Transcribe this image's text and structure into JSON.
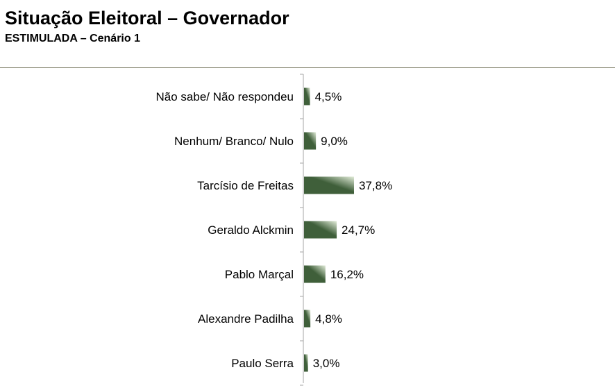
{
  "header": {
    "title": "Situação Eleitoral – Governador",
    "subtitle": "ESTIMULADA – Cenário 1"
  },
  "chart_data": {
    "type": "bar",
    "orientation": "horizontal",
    "categories": [
      "Não sabe/ Não respondeu",
      "Nenhum/ Branco/ Nulo",
      "Tarcísio de Freitas",
      "Geraldo Alckmin",
      "Pablo Marçal",
      "Alexandre Padilha",
      "Paulo Serra"
    ],
    "values": [
      4.5,
      9.0,
      37.8,
      24.7,
      16.2,
      4.8,
      3.0
    ],
    "value_labels": [
      "4,5%",
      "9,0%",
      "37,8%",
      "24,7%",
      "16,2%",
      "4,8%",
      "3,0%"
    ],
    "xlim": [
      0,
      100
    ],
    "grid": false,
    "legend": "none",
    "bar_color_dark": "#3f5f3a",
    "bar_color_light": "#e2ecd9"
  }
}
